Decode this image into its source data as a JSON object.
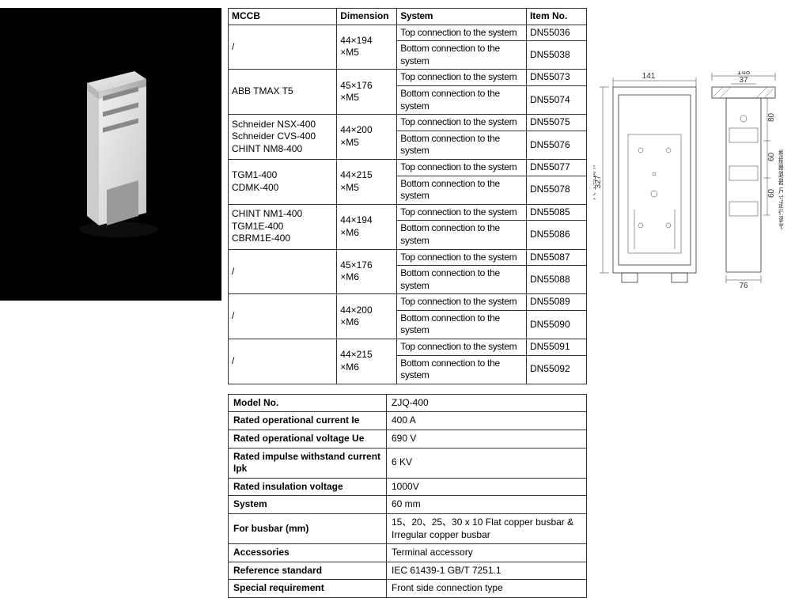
{
  "main_table": {
    "headers": [
      "MCCB",
      "Dimension",
      "System",
      "Item No."
    ],
    "groups": [
      {
        "mccb": "/",
        "dimension": "44×194\n×M5",
        "rows": [
          {
            "system": "Top connection to the system",
            "item": "DN55036"
          },
          {
            "system": "Bottom connection to the system",
            "item": "DN55038"
          }
        ]
      },
      {
        "mccb": "ABB TMAX T5",
        "dimension": "45×176\n×M5",
        "rows": [
          {
            "system": "Top connection to the system",
            "item": "DN55073"
          },
          {
            "system": "Bottom connection to the system",
            "item": "DN55074"
          }
        ]
      },
      {
        "mccb": "Schneider NSX-400\nSchneider CVS-400\nCHINT NM8-400",
        "dimension": "44×200\n×M5",
        "rows": [
          {
            "system": "Top connection to the system",
            "item": "DN55075"
          },
          {
            "system": "Bottom connection to the system",
            "item": "DN55076"
          }
        ]
      },
      {
        "mccb": "TGM1-400\nCDMK-400",
        "dimension": "44×215\n×M5",
        "rows": [
          {
            "system": "Top connection to the system",
            "item": "DN55077"
          },
          {
            "system": "Bottom connection to the system",
            "item": "DN55078"
          }
        ]
      },
      {
        "mccb": "CHINT NM1-400\nTGM1E-400\nCBRM1E-400",
        "dimension": "44×194\n×M6",
        "rows": [
          {
            "system": "Top connection to the system",
            "item": "DN55085"
          },
          {
            "system": "Bottom connection to the system",
            "item": "DN55086"
          }
        ]
      },
      {
        "mccb": "/",
        "dimension": "45×176\n×M6",
        "rows": [
          {
            "system": "Top connection to the system",
            "item": "DN55087"
          },
          {
            "system": "Bottom connection to the system",
            "item": "DN55088"
          }
        ]
      },
      {
        "mccb": "/",
        "dimension": "44×200\n×M6",
        "rows": [
          {
            "system": "Top connection to the system",
            "item": "DN55089"
          },
          {
            "system": "Bottom connection to the system",
            "item": "DN55090"
          }
        ]
      },
      {
        "mccb": "/",
        "dimension": "44×215\n×M6",
        "rows": [
          {
            "system": "Top connection to the system",
            "item": "DN55091"
          },
          {
            "system": "Bottom connection to the system",
            "item": "DN55092"
          }
        ]
      }
    ]
  },
  "spec_table": {
    "rows": [
      {
        "label": "Model No.",
        "value": "ZJQ-400"
      },
      {
        "label": "Rated operational current Ie",
        "value": "400 A"
      },
      {
        "label": "Rated operational voltage Ue",
        "value": "690  V"
      },
      {
        "label": "Rated impulse withstand current Ipk",
        "value": "6 KV"
      },
      {
        "label": "Rated insulation voltage",
        "value": "1000V"
      },
      {
        "label": "System",
        "value": "60 mm"
      },
      {
        "label": "For busbar (mm)",
        "value": "15、20、25、30 x 10 Flat copper busbar & Irregular copper busbar"
      },
      {
        "label": "Accessories",
        "value": "Terminal accessory"
      },
      {
        "label": "Reference standard",
        "value": "IEC 61439-1   GB/T 7251.1"
      },
      {
        "label": "Special  requirement",
        "value": "Front side connection type"
      }
    ]
  },
  "drawing": {
    "dim_141": "141",
    "dim_148": "148",
    "dim_37": "37",
    "dim_327": "327",
    "dim_80": "80",
    "dim_60a": "60",
    "dim_60b": "60",
    "dim_76": "76",
    "note_left": "尺寸可调节",
    "note_right": "根据断路器 尺寸进行调节"
  }
}
